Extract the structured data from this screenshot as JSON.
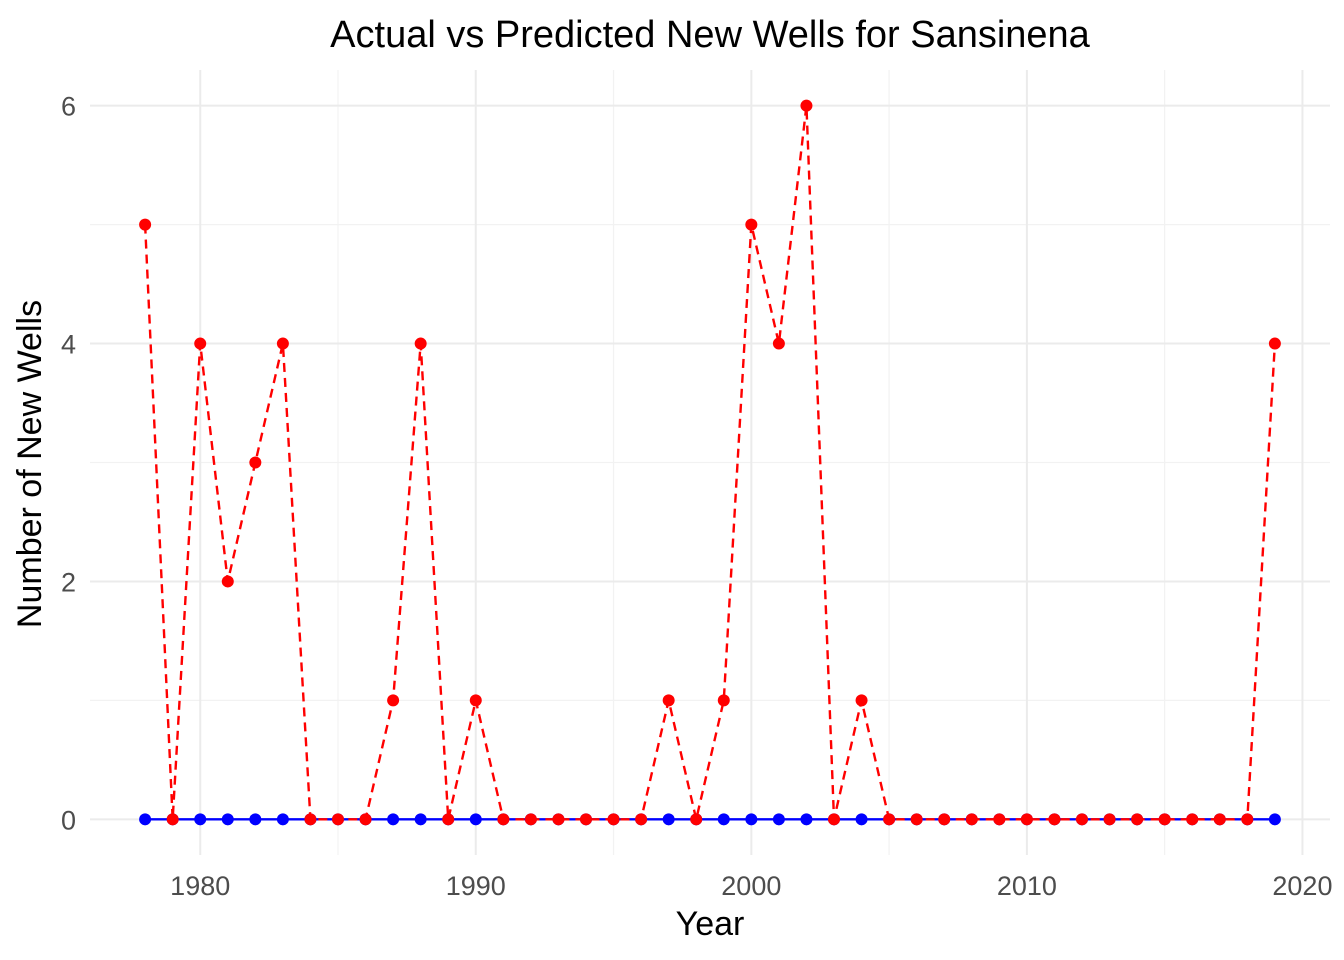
{
  "chart_data": {
    "type": "line",
    "title": "Actual vs Predicted New Wells for Sansinena",
    "xlabel": "Year",
    "ylabel": "Number of New Wells",
    "xlim": [
      1976,
      2021
    ],
    "ylim": [
      -0.3,
      6.3
    ],
    "x_ticks": [
      1980,
      1990,
      2000,
      2010,
      2020
    ],
    "y_ticks": [
      0,
      2,
      4,
      6
    ],
    "grid": true,
    "legend": "none",
    "x": [
      1978,
      1979,
      1980,
      1981,
      1982,
      1983,
      1984,
      1985,
      1986,
      1987,
      1988,
      1989,
      1990,
      1991,
      1992,
      1993,
      1994,
      1995,
      1996,
      1997,
      1998,
      1999,
      2000,
      2001,
      2002,
      2003,
      2004,
      2005,
      2006,
      2007,
      2008,
      2009,
      2010,
      2011,
      2012,
      2013,
      2014,
      2015,
      2016,
      2017,
      2018,
      2019
    ],
    "series": [
      {
        "color": "#0000ff",
        "line_style": "solid",
        "values": [
          0,
          0,
          0,
          0,
          0,
          0,
          0,
          0,
          0,
          0,
          0,
          0,
          0,
          0,
          0,
          0,
          0,
          0,
          0,
          0,
          0,
          0,
          0,
          0,
          0,
          0,
          0,
          0,
          0,
          0,
          0,
          0,
          0,
          0,
          0,
          0,
          0,
          0,
          0,
          0,
          0,
          0
        ]
      },
      {
        "color": "#ff0000",
        "line_style": "dashed",
        "values": [
          5,
          0,
          4,
          2,
          3,
          4,
          0,
          0,
          0,
          1,
          4,
          0,
          1,
          0,
          0,
          0,
          0,
          0,
          0,
          1,
          0,
          1,
          5,
          4,
          6,
          0,
          1,
          0,
          0,
          0,
          0,
          0,
          0,
          0,
          0,
          0,
          0,
          0,
          0,
          0,
          0,
          4
        ]
      }
    ]
  }
}
